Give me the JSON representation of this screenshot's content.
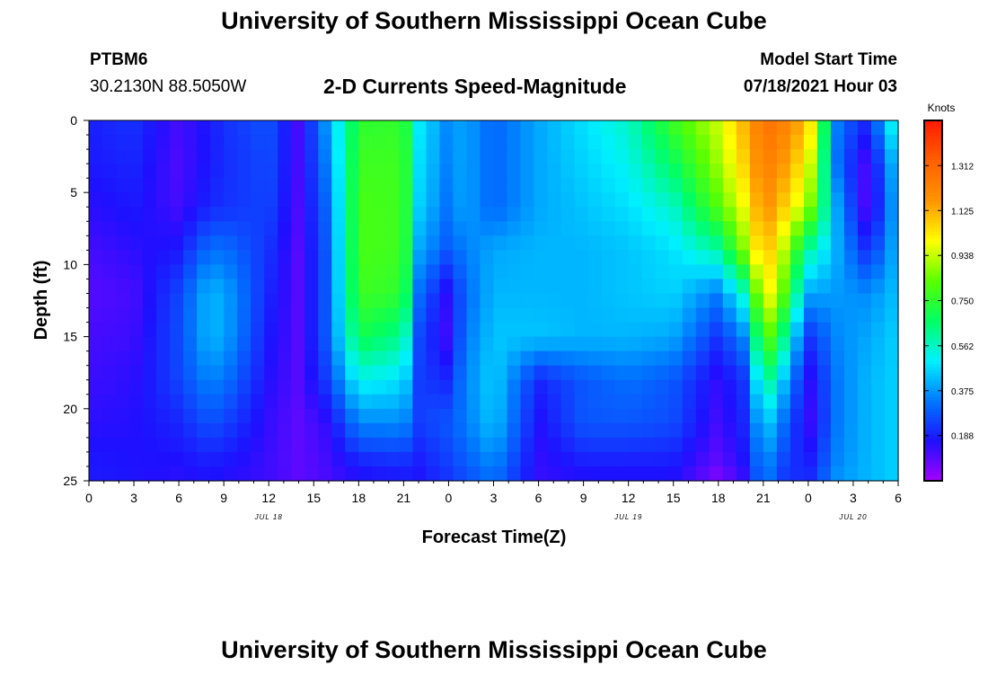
{
  "header": {
    "title": "University of Southern Mississippi Ocean Cube",
    "station_id": "PTBM6",
    "station_coords": "30.2130N  88.5050W",
    "plot_title": "2-D Currents Speed-Magnitude",
    "model_start_label": "Model Start Time",
    "model_start_value": "07/18/2021 Hour 03"
  },
  "footer": {
    "title": "University of Southern Mississippi Ocean Cube"
  },
  "colors": {
    "scale": [
      "#a800ff",
      "#1e10ff",
      "#0078ff",
      "#00f0ff",
      "#00ff64",
      "#5aff00",
      "#ffff00",
      "#ff9600",
      "#ff6000",
      "#ff1c00"
    ]
  },
  "chart_data": {
    "type": "heatmap",
    "title": "2-D Currents Speed-Magnitude",
    "xlabel": "Forecast Time(Z)",
    "ylabel": "Depth (ft)",
    "x_range_hours": [
      0,
      54
    ],
    "y_range_ft": [
      0,
      25
    ],
    "y_reversed": true,
    "xticks": [
      {
        "t": 0,
        "label": "0"
      },
      {
        "t": 3,
        "label": "3"
      },
      {
        "t": 6,
        "label": "6"
      },
      {
        "t": 9,
        "label": "9"
      },
      {
        "t": 12,
        "label": "12"
      },
      {
        "t": 15,
        "label": "15"
      },
      {
        "t": 18,
        "label": "18"
      },
      {
        "t": 21,
        "label": "21"
      },
      {
        "t": 24,
        "label": "0"
      },
      {
        "t": 27,
        "label": "3"
      },
      {
        "t": 30,
        "label": "6"
      },
      {
        "t": 33,
        "label": "9"
      },
      {
        "t": 36,
        "label": "12"
      },
      {
        "t": 39,
        "label": "15"
      },
      {
        "t": 42,
        "label": "18"
      },
      {
        "t": 45,
        "label": "21"
      },
      {
        "t": 48,
        "label": "0"
      },
      {
        "t": 51,
        "label": "3"
      },
      {
        "t": 54,
        "label": "6"
      }
    ],
    "date_labels": [
      {
        "t": 12,
        "label": "JUL 18"
      },
      {
        "t": 36,
        "label": "JUL 19"
      },
      {
        "t": 51,
        "label": "JUL 20"
      }
    ],
    "yticks": [
      {
        "v": 0,
        "label": "0"
      },
      {
        "v": 5,
        "label": "5"
      },
      {
        "v": 10,
        "label": "10"
      },
      {
        "v": 15,
        "label": "15"
      },
      {
        "v": 20,
        "label": "20"
      },
      {
        "v": 25,
        "label": "25"
      }
    ],
    "colorbar": {
      "units": "Knots",
      "min": 0,
      "max": 1.5,
      "tick_values": [
        0.188,
        0.375,
        0.562,
        0.75,
        0.938,
        1.125,
        1.312
      ],
      "tick_labels": [
        "0.188",
        "0.375",
        "0.562",
        "0.750",
        "0.938",
        "1.125",
        "1.312"
      ]
    },
    "grid_times_hours": [
      0,
      3,
      6,
      8,
      9,
      12,
      14,
      16,
      18,
      21,
      22,
      24,
      25,
      27,
      30,
      33,
      36,
      39,
      42,
      44,
      45,
      46,
      48,
      50,
      52,
      54
    ],
    "grid_depths_ft": [
      0,
      3,
      6,
      9,
      12,
      15,
      18,
      21,
      24,
      25
    ],
    "speed_knots_by_time": [
      [
        0.19,
        0.18,
        0.15,
        0.12,
        0.1,
        0.12,
        0.13,
        0.15,
        0.18,
        0.18
      ],
      [
        0.22,
        0.2,
        0.18,
        0.15,
        0.12,
        0.13,
        0.15,
        0.16,
        0.17,
        0.17
      ],
      [
        0.12,
        0.11,
        0.12,
        0.18,
        0.25,
        0.26,
        0.25,
        0.2,
        0.16,
        0.15
      ],
      [
        0.18,
        0.18,
        0.2,
        0.32,
        0.42,
        0.42,
        0.35,
        0.27,
        0.18,
        0.17
      ],
      [
        0.22,
        0.21,
        0.22,
        0.32,
        0.4,
        0.4,
        0.33,
        0.25,
        0.17,
        0.16
      ],
      [
        0.27,
        0.26,
        0.25,
        0.22,
        0.2,
        0.18,
        0.16,
        0.14,
        0.13,
        0.13
      ],
      [
        0.12,
        0.12,
        0.11,
        0.1,
        0.1,
        0.1,
        0.1,
        0.09,
        0.09,
        0.09
      ],
      [
        0.4,
        0.36,
        0.32,
        0.3,
        0.3,
        0.3,
        0.25,
        0.15,
        0.12,
        0.12
      ],
      [
        0.75,
        0.78,
        0.8,
        0.8,
        0.78,
        0.7,
        0.52,
        0.35,
        0.18,
        0.16
      ],
      [
        0.76,
        0.78,
        0.78,
        0.78,
        0.75,
        0.62,
        0.48,
        0.36,
        0.2,
        0.18
      ],
      [
        0.5,
        0.48,
        0.46,
        0.4,
        0.32,
        0.26,
        0.24,
        0.24,
        0.18,
        0.17
      ],
      [
        0.35,
        0.34,
        0.32,
        0.28,
        0.14,
        0.12,
        0.2,
        0.28,
        0.24,
        0.22
      ],
      [
        0.4,
        0.4,
        0.4,
        0.34,
        0.3,
        0.32,
        0.34,
        0.33,
        0.28,
        0.25
      ],
      [
        0.3,
        0.3,
        0.3,
        0.4,
        0.42,
        0.44,
        0.46,
        0.44,
        0.35,
        0.32
      ],
      [
        0.4,
        0.4,
        0.4,
        0.42,
        0.42,
        0.44,
        0.2,
        0.16,
        0.14,
        0.14
      ],
      [
        0.48,
        0.46,
        0.44,
        0.42,
        0.42,
        0.42,
        0.28,
        0.28,
        0.18,
        0.16
      ],
      [
        0.56,
        0.52,
        0.48,
        0.44,
        0.44,
        0.42,
        0.32,
        0.28,
        0.18,
        0.16
      ],
      [
        0.78,
        0.68,
        0.56,
        0.48,
        0.46,
        0.4,
        0.28,
        0.26,
        0.18,
        0.16
      ],
      [
        0.95,
        0.9,
        0.82,
        0.6,
        0.34,
        0.22,
        0.14,
        0.12,
        0.08,
        0.04
      ],
      [
        1.15,
        1.1,
        1.02,
        0.92,
        0.6,
        0.38,
        0.24,
        0.22,
        0.18,
        0.14
      ],
      [
        1.28,
        1.24,
        1.2,
        1.12,
        1.04,
        0.88,
        0.68,
        0.48,
        0.38,
        0.38
      ],
      [
        1.26,
        1.2,
        1.12,
        1.0,
        0.92,
        0.72,
        0.5,
        0.36,
        0.26,
        0.24
      ],
      [
        1.1,
        1.0,
        0.9,
        0.6,
        0.4,
        0.22,
        0.14,
        0.12,
        0.18,
        0.2
      ],
      [
        0.32,
        0.3,
        0.38,
        0.4,
        0.38,
        0.36,
        0.34,
        0.34,
        0.36,
        0.38
      ],
      [
        0.2,
        0.1,
        0.08,
        0.2,
        0.36,
        0.4,
        0.42,
        0.42,
        0.42,
        0.42
      ],
      [
        0.6,
        0.48,
        0.44,
        0.44,
        0.44,
        0.46,
        0.46,
        0.46,
        0.46,
        0.46
      ]
    ]
  }
}
